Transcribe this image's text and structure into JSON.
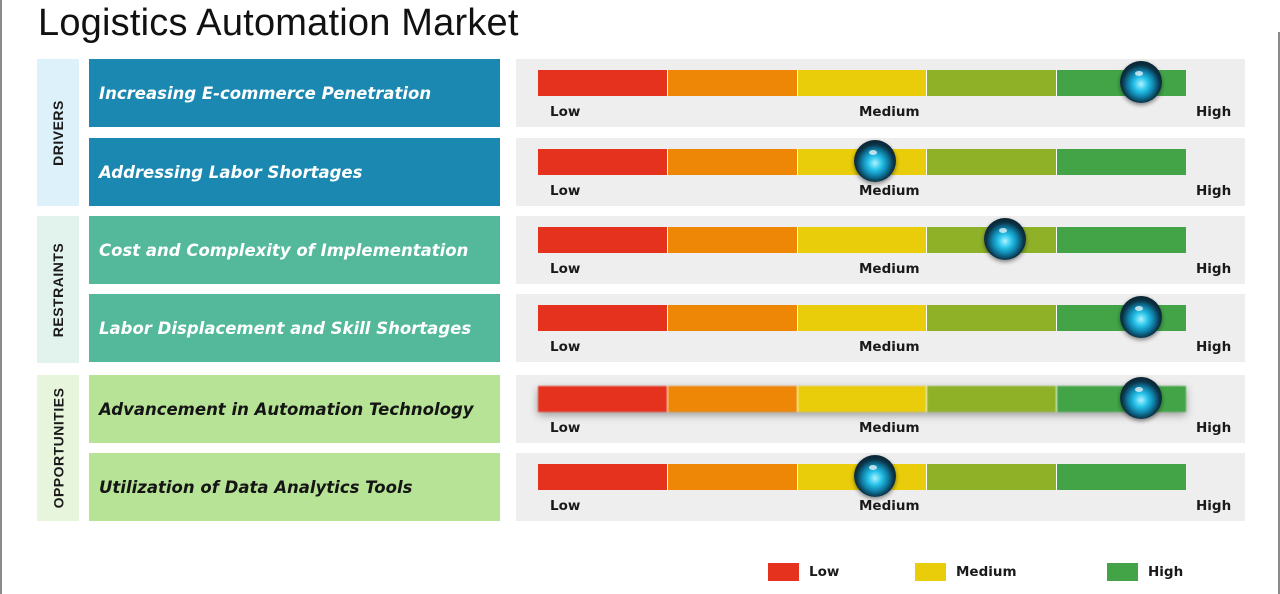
{
  "title": "Logistics Automation Market",
  "colors": {
    "segments": [
      "#e5321e",
      "#ee8606",
      "#e9cc0a",
      "#8fb128",
      "#42a447"
    ],
    "drivers_bg": "#1a88b1",
    "drivers_cat_bg": "#dcf1f9",
    "restraints_bg": "#54b99a",
    "restraints_cat_bg": "#e2f2ec",
    "opportunities_bg": "#b7e396",
    "opportunities_cat_bg": "#e8f5dd"
  },
  "categories": [
    {
      "label": "DRIVERS",
      "key": "drivers"
    },
    {
      "label": "RESTRAINTS",
      "key": "restraints"
    },
    {
      "label": "OPPORTUNITIES",
      "key": "opportunities"
    }
  ],
  "factors": [
    {
      "label": "Increasing E-commerce Penetration",
      "category": "drivers",
      "level": "High"
    },
    {
      "label": "Addressing Labor Shortages",
      "category": "drivers",
      "level": "Medium"
    },
    {
      "label": "Cost and Complexity of Implementation",
      "category": "restraints",
      "level": "Medium-High"
    },
    {
      "label": "Labor Displacement and Skill Shortages",
      "category": "restraints",
      "level": "High"
    },
    {
      "label": "Advancement in Automation Technology",
      "category": "opportunities",
      "level": "High"
    },
    {
      "label": "Utilization of Data Analytics Tools",
      "category": "opportunities",
      "level": "Medium"
    }
  ],
  "gauge_labels": {
    "low": "Low",
    "medium": "Medium",
    "high": "High"
  },
  "legend": [
    {
      "label": "Low",
      "color": "#e5321e"
    },
    {
      "label": "Medium",
      "color": "#e9cc0a"
    },
    {
      "label": "High",
      "color": "#42a447"
    }
  ],
  "chart_data": {
    "type": "table",
    "scale": [
      "Low",
      "Medium",
      "High"
    ],
    "rows": [
      {
        "group": "DRIVERS",
        "factor": "Increasing E-commerce Penetration",
        "value": 0.93
      },
      {
        "group": "DRIVERS",
        "factor": "Addressing Labor Shortages",
        "value": 0.52
      },
      {
        "group": "RESTRAINTS",
        "factor": "Cost and Complexity of Implementation",
        "value": 0.72
      },
      {
        "group": "RESTRAINTS",
        "factor": "Labor Displacement and Skill Shortages",
        "value": 0.93
      },
      {
        "group": "OPPORTUNITIES",
        "factor": "Advancement in Automation Technology",
        "value": 0.93
      },
      {
        "group": "OPPORTUNITIES",
        "factor": "Utilization of Data Analytics Tools",
        "value": 0.52
      }
    ]
  }
}
